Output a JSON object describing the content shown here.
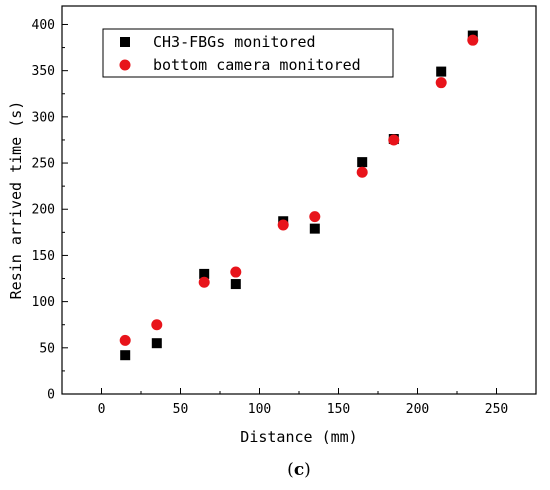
{
  "chart_data": {
    "type": "scatter",
    "xlabel": "Distance (mm)",
    "ylabel": "Resin arrived time (s)",
    "xlim": [
      -25,
      275
    ],
    "ylim": [
      0,
      420
    ],
    "xticks": [
      0,
      50,
      100,
      150,
      200,
      250
    ],
    "yticks": [
      0,
      50,
      100,
      150,
      200,
      250,
      300,
      350,
      400
    ],
    "grid": false,
    "legend_position": "top-left",
    "series": [
      {
        "name": "CH3-FBGs monitored",
        "marker": "square",
        "color": "#000000",
        "x": [
          15,
          35,
          65,
          85,
          115,
          135,
          165,
          185,
          215,
          235
        ],
        "y": [
          42,
          55,
          130,
          119,
          187,
          179,
          251,
          276,
          349,
          388
        ]
      },
      {
        "name": "bottom camera monitored",
        "marker": "circle",
        "color": "#e8141b",
        "x": [
          15,
          35,
          65,
          85,
          115,
          135,
          165,
          185,
          215,
          235
        ],
        "y": [
          58,
          75,
          121,
          132,
          183,
          192,
          240,
          275,
          337,
          383
        ]
      }
    ]
  },
  "panel_label": "(c)"
}
